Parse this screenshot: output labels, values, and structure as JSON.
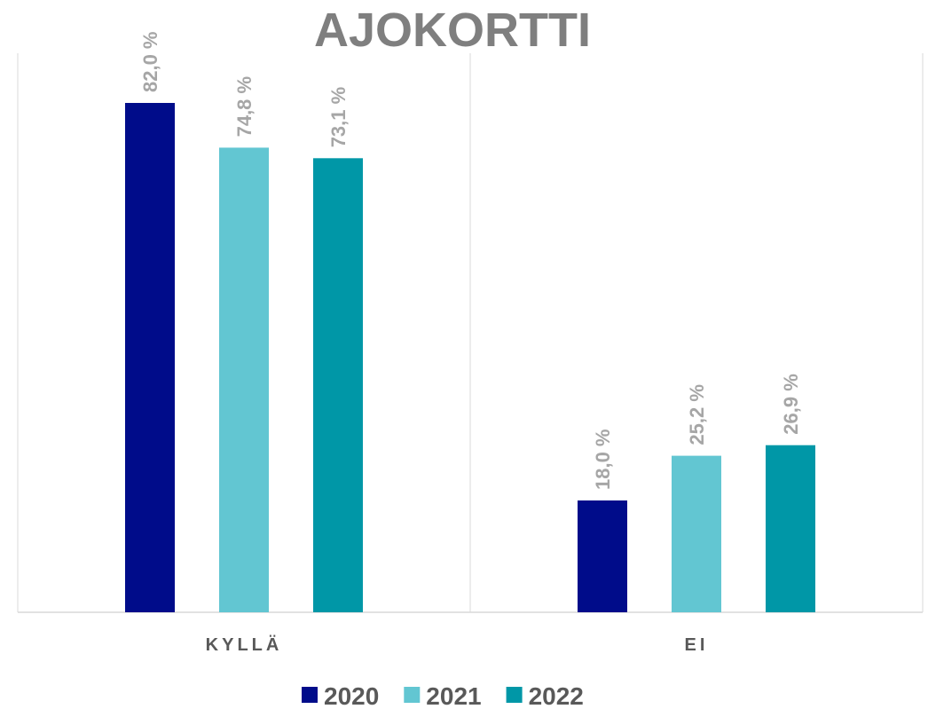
{
  "chart_data": {
    "type": "bar",
    "title": "AJOKORTTI",
    "categories": [
      "KYLLÄ",
      "EI"
    ],
    "series": [
      {
        "name": "2020",
        "color": "#000c8a",
        "values": [
          82.0,
          18.0
        ],
        "value_labels": [
          "82,0 %",
          "18,0 %"
        ]
      },
      {
        "name": "2021",
        "color": "#62c6d2",
        "values": [
          74.8,
          25.2
        ],
        "value_labels": [
          "74,8 %",
          "25,2 %"
        ]
      },
      {
        "name": "2022",
        "color": "#0097a7",
        "values": [
          73.1,
          26.9
        ],
        "value_labels": [
          "73,1 %",
          "26,9 %"
        ]
      }
    ],
    "ylim": [
      0,
      90
    ],
    "legend": "bottom"
  }
}
